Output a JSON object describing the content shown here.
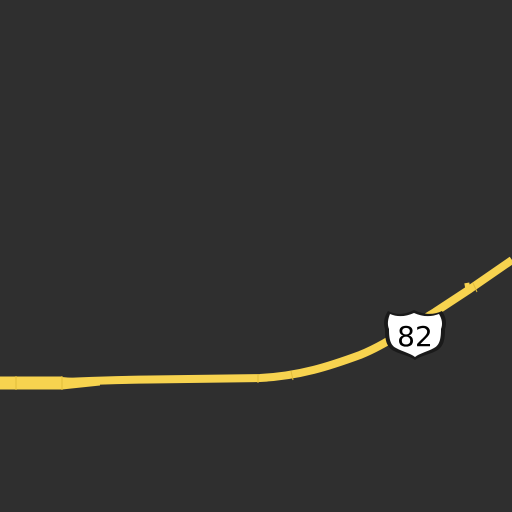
{
  "map": {
    "background_color": "#2f2f2f",
    "road": {
      "type": "US highway",
      "color": "#f7d34f"
    },
    "shield": {
      "icon": "us-highway-shield-icon",
      "route_number": "82",
      "fill_color": "#ffffff",
      "outline_color": "#1a1a1a",
      "text_color": "#000000"
    }
  }
}
